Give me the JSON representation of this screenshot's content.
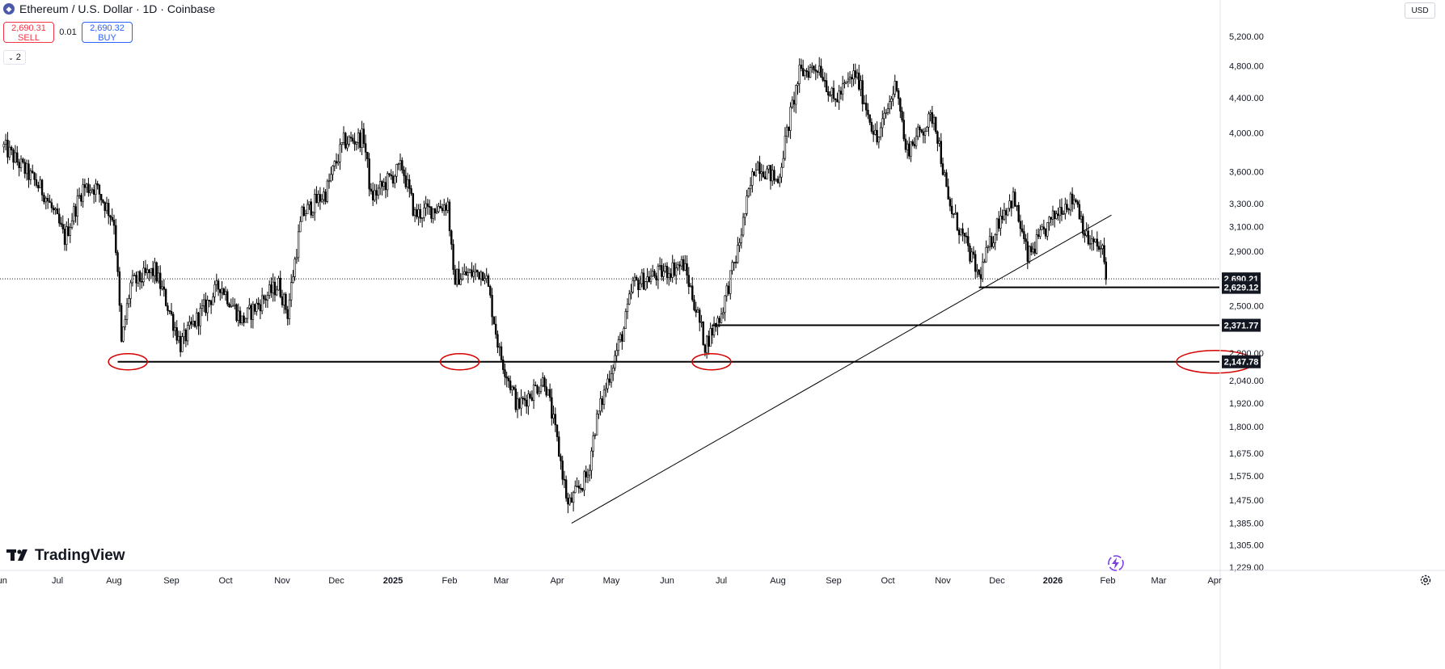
{
  "header": {
    "title": "Ethereum / U.S. Dollar · 1D · Coinbase",
    "icon": "ethereum-icon",
    "sell": {
      "price": "2,690.31",
      "label": "SELL"
    },
    "spread": "0.01",
    "buy": {
      "price": "2,690.32",
      "label": "BUY"
    },
    "indicator_toggle": "2"
  },
  "currency": "USD",
  "logo_text": "TradingView",
  "colors": {
    "candle": "#000000",
    "price_line": "#131722",
    "circle": "#d60000",
    "grid": "#e0e3eb",
    "highlight": "#7b3fe4"
  },
  "chart_data": {
    "type": "candlestick",
    "scale": "log",
    "ylim": [
      1229,
      5400
    ],
    "y_ticks": [
      "5,200.00",
      "4,800.00",
      "4,400.00",
      "4,000.00",
      "3,600.00",
      "3,300.00",
      "3,100.00",
      "2,900.00",
      "2,500.00",
      "2,200.00",
      "2,040.00",
      "1,920.00",
      "1,800.00",
      "1,675.00",
      "1,575.00",
      "1,475.00",
      "1,385.00",
      "1,305.00",
      "1,229.00"
    ],
    "x_ticks": [
      "Jun",
      "Jul",
      "Aug",
      "Sep",
      "Oct",
      "Nov",
      "Dec",
      "2025",
      "Feb",
      "Mar",
      "Apr",
      "May",
      "Jun",
      "Jul",
      "Aug",
      "Sep",
      "Oct",
      "Nov",
      "Dec",
      "2026",
      "Feb",
      "Mar",
      "Apr"
    ],
    "price_path": [
      [
        "2024-06-03",
        3850
      ],
      [
        "2024-06-10",
        3700
      ],
      [
        "2024-06-24",
        3400
      ],
      [
        "2024-07-05",
        3000
      ],
      [
        "2024-07-15",
        3450
      ],
      [
        "2024-07-22",
        3450
      ],
      [
        "2024-08-01",
        3150
      ],
      [
        "2024-08-05",
        2250
      ],
      [
        "2024-08-10",
        2650
      ],
      [
        "2024-08-23",
        2750
      ],
      [
        "2024-09-06",
        2250
      ],
      [
        "2024-09-20",
        2500
      ],
      [
        "2024-09-28",
        2650
      ],
      [
        "2024-10-10",
        2400
      ],
      [
        "2024-10-30",
        2650
      ],
      [
        "2024-11-04",
        2450
      ],
      [
        "2024-11-12",
        3200
      ],
      [
        "2024-11-25",
        3400
      ],
      [
        "2024-12-05",
        3900
      ],
      [
        "2024-12-16",
        3950
      ],
      [
        "2024-12-20",
        3350
      ],
      [
        "2025-01-06",
        3650
      ],
      [
        "2025-01-13",
        3200
      ],
      [
        "2025-01-31",
        3300
      ],
      [
        "2025-02-03",
        2700
      ],
      [
        "2025-02-20",
        2750
      ],
      [
        "2025-02-28",
        2200
      ],
      [
        "2025-03-10",
        1900
      ],
      [
        "2025-03-25",
        2050
      ],
      [
        "2025-04-07",
        1450
      ],
      [
        "2025-04-18",
        1580
      ],
      [
        "2025-04-22",
        1800
      ],
      [
        "2025-05-08",
        2350
      ],
      [
        "2025-05-13",
        2650
      ],
      [
        "2025-06-10",
        2800
      ],
      [
        "2025-06-22",
        2250
      ],
      [
        "2025-07-01",
        2450
      ],
      [
        "2025-07-10",
        2900
      ],
      [
        "2025-07-20",
        3700
      ],
      [
        "2025-08-01",
        3500
      ],
      [
        "2025-08-13",
        4700
      ],
      [
        "2025-08-24",
        4800
      ],
      [
        "2025-09-01",
        4350
      ],
      [
        "2025-09-13",
        4700
      ],
      [
        "2025-09-25",
        3900
      ],
      [
        "2025-10-06",
        4600
      ],
      [
        "2025-10-11",
        3800
      ],
      [
        "2025-10-27",
        4200
      ],
      [
        "2025-11-04",
        3300
      ],
      [
        "2025-11-21",
        2700
      ],
      [
        "2025-12-03",
        3200
      ],
      [
        "2025-12-10",
        3350
      ],
      [
        "2025-12-18",
        2850
      ],
      [
        "2026-01-06",
        3280
      ],
      [
        "2026-01-14",
        3350
      ],
      [
        "2026-01-20",
        3000
      ],
      [
        "2026-01-29",
        2900
      ],
      [
        "2026-01-31",
        2690
      ]
    ],
    "horizontal_levels": [
      {
        "value": 2147.78,
        "label": "2,147.78",
        "from": "2024-08-03"
      },
      {
        "value": 2371.77,
        "label": "2,371.77",
        "from": "2025-06-26"
      },
      {
        "value": 2629.12,
        "label": "2,629.12",
        "from": "2025-11-21"
      }
    ],
    "last_price": {
      "value": 2690.21,
      "label": "2,690.21"
    },
    "trendline": {
      "from": [
        "2025-04-09",
        1385
      ],
      "to": [
        "2026-02-03",
        3200
      ]
    },
    "circles": [
      "2024-08-05",
      "2025-02-03",
      "2025-06-22",
      "axis"
    ]
  }
}
